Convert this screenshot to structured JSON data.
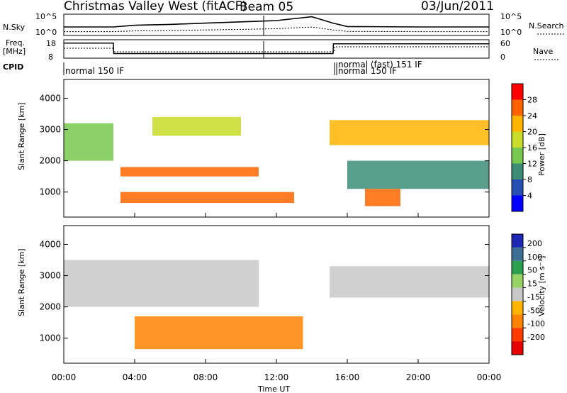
{
  "header": {
    "station": "Christmas Valley West (fitACF)",
    "beam": "Beam 05",
    "date": "03/Jun/2011"
  },
  "panels": {
    "nsky": {
      "left_label": "N.Sky",
      "left_ticks": [
        "10^5",
        "10^0"
      ],
      "right_label": "N.Search",
      "right_ticks": [
        "10^5",
        "10^0"
      ]
    },
    "freq": {
      "left_label_1": "Freq.",
      "left_label_2": "[MHz]",
      "left_ticks": [
        "18",
        "8"
      ],
      "right_label": "Nave",
      "right_ticks": [
        "60",
        "0"
      ]
    },
    "cpid": {
      "label": "CPID",
      "entries": [
        "normal 150 IF",
        "normal 150 IF",
        "normal (fast) 151 IF"
      ]
    }
  },
  "axes": {
    "x_label": "Time UT",
    "x_ticks": [
      "00:00",
      "04:00",
      "08:00",
      "12:00",
      "16:00",
      "20:00",
      "00:00"
    ],
    "y_label": "Slant Range [km]",
    "y_ticks": [
      "1000",
      "2000",
      "3000",
      "4000"
    ]
  },
  "colorbars": {
    "power": {
      "label": "Power [dB]",
      "ticks": [
        "4",
        "8",
        "12",
        "16",
        "20",
        "24",
        "28"
      ],
      "colors": [
        "#0000ff",
        "#2850b4",
        "#3c8c78",
        "#78c850",
        "#c8dc28",
        "#ffb400",
        "#ff6400",
        "#ff0000"
      ]
    },
    "velocity": {
      "label": "Velocity [m s⁻¹]",
      "ticks": [
        "200",
        "100",
        "50",
        "15",
        "-15",
        "-50",
        "-100",
        "-200"
      ],
      "colors": [
        "#1e28b4",
        "#3c6e96",
        "#2da050",
        "#96d264",
        "#c8c8c8",
        "#ffb400",
        "#ff8200",
        "#ff3c00",
        "#e60000"
      ]
    }
  },
  "chart_data": {
    "type": "heatmap",
    "x_range": [
      "00:00",
      "24:00"
    ],
    "y_range": [
      200,
      4600
    ],
    "series": [
      {
        "name": "Power [dB]",
        "bands": [
          {
            "start": "00:00",
            "end": "02:48",
            "range_lo": 2000,
            "range_hi": 3200,
            "value": 14
          },
          {
            "start": "03:12",
            "end": "11:00",
            "range_lo": 1500,
            "range_hi": 1800,
            "value": 24
          },
          {
            "start": "03:12",
            "end": "13:00",
            "range_lo": 650,
            "range_hi": 1000,
            "value": 26
          },
          {
            "start": "05:00",
            "end": "10:00",
            "range_lo": 2800,
            "range_hi": 3400,
            "value": 18
          },
          {
            "start": "15:00",
            "end": "24:00",
            "range_lo": 2500,
            "range_hi": 3300,
            "value": 22
          },
          {
            "start": "16:00",
            "end": "24:00",
            "range_lo": 1100,
            "range_hi": 2000,
            "value": 9
          },
          {
            "start": "17:00",
            "end": "19:00",
            "range_lo": 550,
            "range_hi": 1100,
            "value": 27
          }
        ]
      },
      {
        "name": "Velocity [m s⁻¹]",
        "bands": [
          {
            "start": "00:00",
            "end": "11:00",
            "range_lo": 2000,
            "range_hi": 3500,
            "value": 0
          },
          {
            "start": "04:00",
            "end": "13:30",
            "range_lo": 650,
            "range_hi": 1700,
            "value": -70
          },
          {
            "start": "15:00",
            "end": "24:00",
            "range_lo": 2300,
            "range_hi": 3300,
            "value": 0
          }
        ]
      }
    ],
    "n_sky_log": {
      "times": [
        "00:00",
        "02:48",
        "04:00",
        "06:00",
        "08:00",
        "10:00",
        "12:00",
        "14:00",
        "15:12",
        "16:00",
        "20:00",
        "24:00"
      ],
      "values": [
        2.0,
        2.0,
        2.4,
        2.6,
        2.9,
        3.2,
        3.5,
        4.4,
        2.9,
        2.1,
        2.0,
        2.0
      ]
    },
    "frequency_mhz": {
      "times": [
        "00:00",
        "02:48",
        "02:49",
        "15:12",
        "15:13",
        "24:00"
      ],
      "values": [
        16.2,
        16.2,
        10.5,
        10.5,
        15.8,
        15.8
      ]
    }
  }
}
